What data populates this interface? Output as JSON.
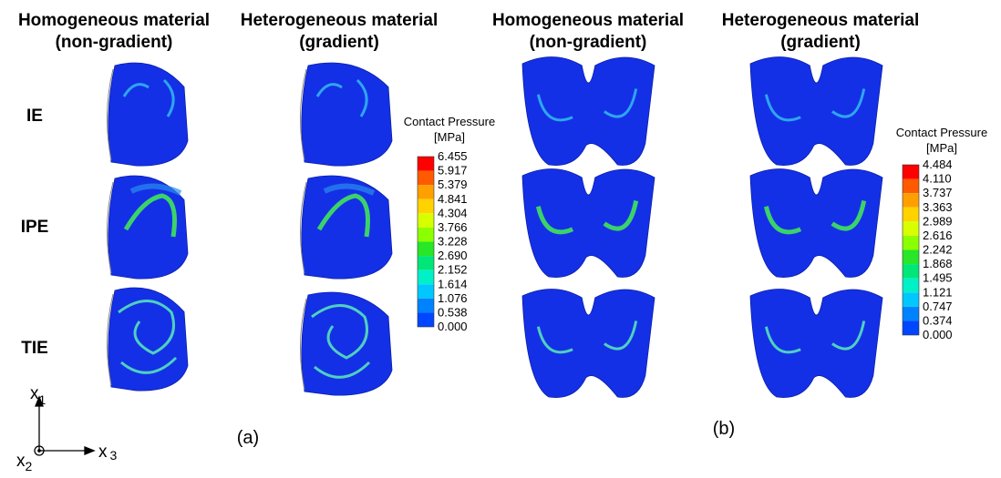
{
  "columns": [
    {
      "lines": [
        "Homogeneous material",
        "(non-gradient)"
      ]
    },
    {
      "lines": [
        "Heterogeneous material",
        "(gradient)"
      ]
    },
    {
      "lines": [
        "Homogeneous material",
        "(non-gradient)"
      ]
    },
    {
      "lines": [
        "Heterogeneous material",
        "(gradient)"
      ]
    }
  ],
  "rows": [
    "IE",
    "IPE",
    "TIE"
  ],
  "legends": [
    {
      "title": [
        "Contact Pressure",
        "[MPa]"
      ],
      "labels": [
        "6.455",
        "5.917",
        "5.379",
        "4.841",
        "4.304",
        "3.766",
        "3.228",
        "2.690",
        "2.152",
        "1.614",
        "1.076",
        "0.538",
        "0.000"
      ]
    },
    {
      "title": [
        "Contact Pressure",
        "[MPa]"
      ],
      "labels": [
        "4.484",
        "4.110",
        "3.737",
        "3.363",
        "2.989",
        "2.616",
        "2.242",
        "1.868",
        "1.495",
        "1.121",
        "0.747",
        "0.374",
        "0.000"
      ]
    }
  ],
  "legend_colors": [
    "#ff0000",
    "#ff5a00",
    "#ffa000",
    "#ffd200",
    "#d7ff00",
    "#8cff00",
    "#28e628",
    "#00e678",
    "#00f0c8",
    "#00c8ff",
    "#0082ff",
    "#0046ff"
  ],
  "panel_labels": [
    "(a)",
    "(b)"
  ],
  "axes": {
    "vertical": {
      "letter": "x",
      "sub": "1"
    },
    "depth": {
      "letter": "x",
      "sub": "2"
    },
    "horizontal": {
      "letter": "x",
      "sub": "3"
    }
  }
}
